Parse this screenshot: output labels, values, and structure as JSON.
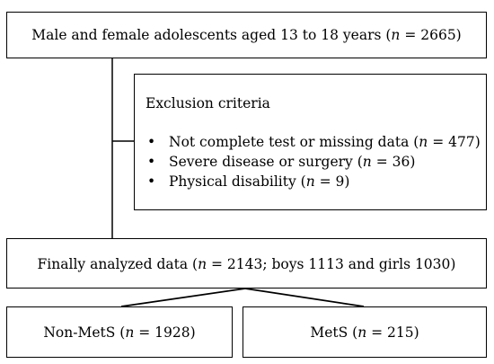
{
  "boxes": {
    "top": {
      "prefix": "Male and female adolescents aged 13 to 18 years (",
      "n_label": "n",
      "suffix": " = 2665)"
    },
    "exclusion": {
      "title": "Exclusion criteria",
      "items": [
        {
          "prefix": "Not complete test or missing data (",
          "n_label": "n",
          "suffix": " = 477)"
        },
        {
          "prefix": "Severe disease or surgery (",
          "n_label": "n",
          "suffix": " = 36)"
        },
        {
          "prefix": "Physical disability (",
          "n_label": "n",
          "suffix": " = 9)"
        }
      ]
    },
    "analyzed": {
      "prefix": "Finally analyzed data (",
      "n_label": "n",
      "suffix": " = 2143; boys 1113  and girls 1030)"
    },
    "non_mets": {
      "prefix": "Non-MetS (",
      "n_label": "n",
      "suffix": " = 1928)"
    },
    "mets": {
      "prefix": "MetS (",
      "n_label": "n",
      "suffix": " = 215)"
    }
  }
}
